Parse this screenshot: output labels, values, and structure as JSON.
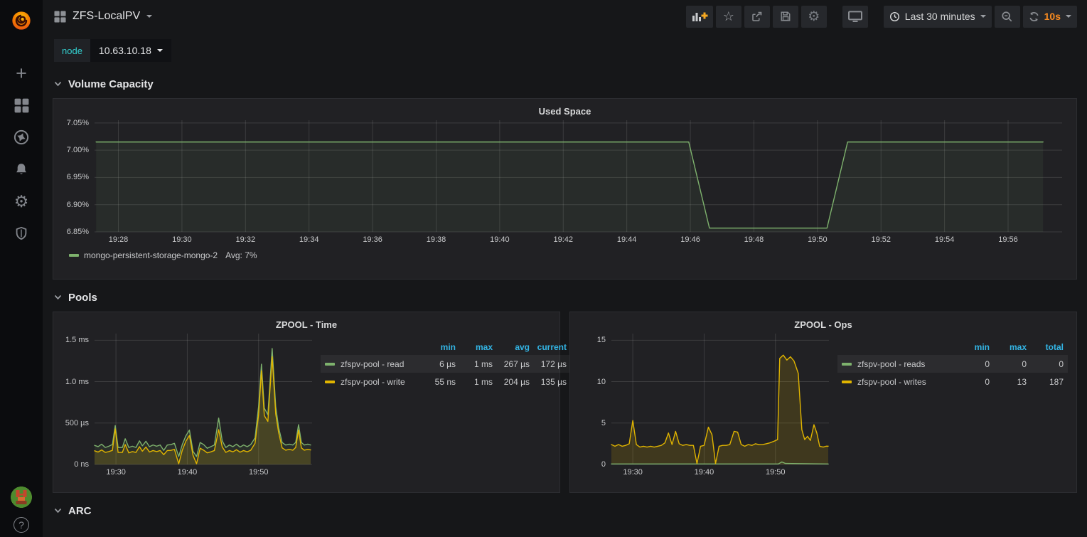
{
  "navbar": {
    "title": "ZFS-LocalPV",
    "time_range": "Last 30 minutes",
    "refresh_interval": "10s"
  },
  "sidebar": {
    "items": [
      {
        "name": "create",
        "icon": "plus-icon"
      },
      {
        "name": "dashboards",
        "icon": "apps-icon"
      },
      {
        "name": "explore",
        "icon": "compass-icon"
      },
      {
        "name": "alerting",
        "icon": "bell-icon"
      },
      {
        "name": "configuration",
        "icon": "gear-icon"
      },
      {
        "name": "server-admin",
        "icon": "shield-icon"
      }
    ],
    "bottom": [
      {
        "name": "user-profile",
        "icon": "user-avatar"
      },
      {
        "name": "help",
        "icon": "question-icon"
      }
    ]
  },
  "icons": {
    "plus": "+",
    "star": "☆",
    "gear": "⚙",
    "question": "?"
  },
  "variables": {
    "label": "node",
    "value": "10.63.10.18"
  },
  "sections": {
    "volume_capacity": "Volume Capacity",
    "pools": "Pools",
    "arc": "ARC"
  },
  "colors": {
    "green": "#7eb26d",
    "yellow": "#e0b400",
    "legend_header_blue": "#33b5e5",
    "refresh_orange": "#f98b20",
    "variable_cyan": "#33cfcf",
    "panel_bg": "#212124",
    "page_bg": "#161719"
  },
  "chart_data": [
    {
      "id": "used_space",
      "type": "line",
      "title": "Used Space",
      "x_domain": [
        27.25,
        57.7
      ],
      "y_domain": [
        6.85,
        7.055
      ],
      "x_ticks": [
        {
          "v": 28,
          "label": "19:28"
        },
        {
          "v": 30,
          "label": "19:30"
        },
        {
          "v": 32,
          "label": "19:32"
        },
        {
          "v": 34,
          "label": "19:34"
        },
        {
          "v": 36,
          "label": "19:36"
        },
        {
          "v": 38,
          "label": "19:38"
        },
        {
          "v": 40,
          "label": "19:40"
        },
        {
          "v": 42,
          "label": "19:42"
        },
        {
          "v": 44,
          "label": "19:44"
        },
        {
          "v": 46,
          "label": "19:46"
        },
        {
          "v": 48,
          "label": "19:48"
        },
        {
          "v": 50,
          "label": "19:50"
        },
        {
          "v": 52,
          "label": "19:52"
        },
        {
          "v": 54,
          "label": "19:54"
        },
        {
          "v": 56,
          "label": "19:56"
        }
      ],
      "y_ticks": [
        {
          "v": 6.85,
          "label": "6.85%"
        },
        {
          "v": 6.9,
          "label": "6.90%"
        },
        {
          "v": 6.95,
          "label": "6.95%"
        },
        {
          "v": 7.0,
          "label": "7.00%"
        },
        {
          "v": 7.05,
          "label": "7.05%"
        }
      ],
      "series": [
        {
          "name": "mongo-persistent-storage-mongo-2",
          "color": "#7eb26d",
          "fill_opacity": 0.08,
          "points": [
            [
              27.3,
              7.015
            ],
            [
              45.95,
              7.015
            ],
            [
              46.6,
              6.857
            ],
            [
              50.3,
              6.857
            ],
            [
              50.95,
              7.015
            ],
            [
              57.1,
              7.015
            ]
          ]
        }
      ],
      "legend": {
        "type": "list",
        "items": [
          {
            "name": "mongo-persistent-storage-mongo-2",
            "color": "#7eb26d",
            "value": "Avg: 7%"
          }
        ]
      }
    },
    {
      "id": "zpool_time",
      "type": "line",
      "title": "ZPOOL - Time",
      "x_domain": [
        27.0,
        57.5
      ],
      "y_domain": [
        0,
        1580
      ],
      "x_ticks": [
        {
          "v": 30,
          "label": "19:30"
        },
        {
          "v": 40,
          "label": "19:40"
        },
        {
          "v": 50,
          "label": "19:50"
        }
      ],
      "y_ticks": [
        {
          "v": 0,
          "label": "0 ns"
        },
        {
          "v": 500,
          "label": "500 µs"
        },
        {
          "v": 1000,
          "label": "1.0 ms"
        },
        {
          "v": 1500,
          "label": "1.5 ms"
        }
      ],
      "series": [
        {
          "name": "zfspv-pool - read",
          "color": "#7eb26d",
          "fill_opacity": 0.1,
          "points": [
            [
              27,
              230
            ],
            [
              27.5,
              215
            ],
            [
              28,
              245
            ],
            [
              28.5,
              205
            ],
            [
              29,
              220
            ],
            [
              29.5,
              240
            ],
            [
              29.9,
              470
            ],
            [
              30.3,
              205
            ],
            [
              30.9,
              205
            ],
            [
              31.3,
              310
            ],
            [
              31.8,
              205
            ],
            [
              32.3,
              220
            ],
            [
              32.8,
              205
            ],
            [
              33.3,
              285
            ],
            [
              33.7,
              225
            ],
            [
              34.2,
              280
            ],
            [
              34.7,
              215
            ],
            [
              35.2,
              235
            ],
            [
              35.7,
              220
            ],
            [
              36.2,
              235
            ],
            [
              36.7,
              170
            ],
            [
              37.2,
              235
            ],
            [
              37.7,
              240
            ],
            [
              38.2,
              255
            ],
            [
              38.8,
              95
            ],
            [
              39.3,
              240
            ],
            [
              39.8,
              345
            ],
            [
              40.3,
              415
            ],
            [
              40.8,
              160
            ],
            [
              41.3,
              95
            ],
            [
              41.8,
              265
            ],
            [
              42.3,
              240
            ],
            [
              42.8,
              195
            ],
            [
              43.3,
              215
            ],
            [
              43.8,
              235
            ],
            [
              44.4,
              560
            ],
            [
              44.9,
              285
            ],
            [
              45.4,
              205
            ],
            [
              45.9,
              235
            ],
            [
              46.4,
              215
            ],
            [
              46.9,
              245
            ],
            [
              47.4,
              210
            ],
            [
              47.9,
              235
            ],
            [
              48.4,
              215
            ],
            [
              48.9,
              240
            ],
            [
              49.5,
              320
            ],
            [
              50,
              700
            ],
            [
              50.4,
              1210
            ],
            [
              50.8,
              680
            ],
            [
              51.3,
              600
            ],
            [
              51.9,
              1400
            ],
            [
              52.4,
              700
            ],
            [
              52.8,
              450
            ],
            [
              53.3,
              265
            ],
            [
              53.8,
              235
            ],
            [
              54.3,
              245
            ],
            [
              54.8,
              235
            ],
            [
              55.2,
              265
            ],
            [
              55.6,
              480
            ],
            [
              56,
              265
            ],
            [
              56.4,
              235
            ],
            [
              56.9,
              245
            ],
            [
              57.3,
              235
            ]
          ]
        },
        {
          "name": "zfspv-pool - write",
          "color": "#e0b400",
          "fill_opacity": 0.16,
          "points": [
            [
              27,
              165
            ],
            [
              27.5,
              150
            ],
            [
              28,
              175
            ],
            [
              28.5,
              145
            ],
            [
              29,
              155
            ],
            [
              29.5,
              170
            ],
            [
              29.9,
              430
            ],
            [
              30.3,
              145
            ],
            [
              30.9,
              145
            ],
            [
              31.3,
              240
            ],
            [
              31.8,
              140
            ],
            [
              32.3,
              155
            ],
            [
              32.8,
              145
            ],
            [
              33.3,
              215
            ],
            [
              33.7,
              160
            ],
            [
              34.2,
              210
            ],
            [
              34.7,
              150
            ],
            [
              35.2,
              168
            ],
            [
              35.7,
              155
            ],
            [
              36.2,
              168
            ],
            [
              36.7,
              118
            ],
            [
              37.2,
              168
            ],
            [
              37.7,
              170
            ],
            [
              38.2,
              182
            ],
            [
              38.8,
              8
            ],
            [
              39.3,
              172
            ],
            [
              39.8,
              280
            ],
            [
              40.3,
              350
            ],
            [
              40.8,
              112
            ],
            [
              41.3,
              8
            ],
            [
              41.8,
              196
            ],
            [
              42.3,
              172
            ],
            [
              42.8,
              140
            ],
            [
              43.3,
              152
            ],
            [
              43.8,
              168
            ],
            [
              44.4,
              420
            ],
            [
              44.9,
              212
            ],
            [
              45.4,
              146
            ],
            [
              45.9,
              168
            ],
            [
              46.4,
              152
            ],
            [
              46.9,
              178
            ],
            [
              47.4,
              148
            ],
            [
              47.9,
              168
            ],
            [
              48.4,
              152
            ],
            [
              48.9,
              172
            ],
            [
              49.5,
              255
            ],
            [
              50,
              600
            ],
            [
              50.4,
              1130
            ],
            [
              50.8,
              590
            ],
            [
              51.3,
              520
            ],
            [
              51.9,
              1300
            ],
            [
              52.4,
              610
            ],
            [
              52.8,
              390
            ],
            [
              53.3,
              200
            ],
            [
              53.8,
              172
            ],
            [
              54.3,
              182
            ],
            [
              54.8,
              172
            ],
            [
              55.2,
              205
            ],
            [
              55.6,
              415
            ],
            [
              56,
              200
            ],
            [
              56.4,
              172
            ],
            [
              56.9,
              182
            ],
            [
              57.3,
              175
            ]
          ]
        }
      ],
      "legend": {
        "type": "table",
        "min_width": 352,
        "headers": [
          "min",
          "max",
          "avg",
          "current"
        ],
        "rows": [
          {
            "name": "zfspv-pool - read",
            "color": "#7eb26d",
            "values": [
              "6 µs",
              "1 ms",
              "267 µs",
              "172 µs"
            ]
          },
          {
            "name": "zfspv-pool - write",
            "color": "#e0b400",
            "values": [
              "55 ns",
              "1 ms",
              "204 µs",
              "135 µs"
            ]
          }
        ]
      }
    },
    {
      "id": "zpool_ops",
      "type": "line",
      "title": "ZPOOL - Ops",
      "x_domain": [
        27.0,
        57.5
      ],
      "y_domain": [
        0,
        15.8
      ],
      "x_ticks": [
        {
          "v": 30,
          "label": "19:30"
        },
        {
          "v": 40,
          "label": "19:40"
        },
        {
          "v": 50,
          "label": "19:50"
        }
      ],
      "y_ticks": [
        {
          "v": 0,
          "label": "0"
        },
        {
          "v": 5,
          "label": "5"
        },
        {
          "v": 10,
          "label": "10"
        },
        {
          "v": 15,
          "label": "15"
        }
      ],
      "series": [
        {
          "name": "zfspv-pool - reads",
          "color": "#7eb26d",
          "fill_opacity": 0.05,
          "points": [
            [
              27,
              0.06
            ],
            [
              50.4,
              0.06
            ],
            [
              50.9,
              0.3
            ],
            [
              51.4,
              0.12
            ],
            [
              57.4,
              0.06
            ]
          ]
        },
        {
          "name": "zfspv-pool - writes",
          "color": "#e0b400",
          "fill_opacity": 0.16,
          "points": [
            [
              27,
              2.4
            ],
            [
              27.5,
              2.2
            ],
            [
              28,
              2.4
            ],
            [
              28.5,
              2.2
            ],
            [
              29,
              2.3
            ],
            [
              29.5,
              2.5
            ],
            [
              30,
              5.3
            ],
            [
              30.5,
              2.4
            ],
            [
              31,
              2.1
            ],
            [
              31.5,
              2.2
            ],
            [
              32,
              2.1
            ],
            [
              32.5,
              2.2
            ],
            [
              33,
              2.1
            ],
            [
              33.5,
              2.2
            ],
            [
              34,
              2.3
            ],
            [
              34.5,
              2.6
            ],
            [
              35,
              3.8
            ],
            [
              35.5,
              2.4
            ],
            [
              36,
              4
            ],
            [
              36.5,
              2.5
            ],
            [
              37,
              2.3
            ],
            [
              37.5,
              2.4
            ],
            [
              38,
              2.3
            ],
            [
              38.5,
              2.3
            ],
            [
              39,
              0.1
            ],
            [
              39.5,
              2.2
            ],
            [
              40,
              2.3
            ],
            [
              40.6,
              4.5
            ],
            [
              41.1,
              3.6
            ],
            [
              41.6,
              0.1
            ],
            [
              42.1,
              2.2
            ],
            [
              42.6,
              2.3
            ],
            [
              43.1,
              2.3
            ],
            [
              43.6,
              2.4
            ],
            [
              44.2,
              4
            ],
            [
              44.7,
              3.9
            ],
            [
              45.2,
              2.4
            ],
            [
              45.7,
              2.2
            ],
            [
              46.2,
              2.4
            ],
            [
              46.7,
              2.3
            ],
            [
              47.2,
              2.5
            ],
            [
              47.7,
              2.4
            ],
            [
              48.2,
              2.4
            ],
            [
              48.7,
              2.5
            ],
            [
              49.2,
              2.6
            ],
            [
              49.8,
              2.8
            ],
            [
              50.3,
              3
            ],
            [
              50.6,
              12.8
            ],
            [
              51.1,
              13.2
            ],
            [
              51.6,
              12.6
            ],
            [
              52.1,
              13
            ],
            [
              52.6,
              12.5
            ],
            [
              53.2,
              11
            ],
            [
              53.7,
              4.2
            ],
            [
              54.1,
              3
            ],
            [
              54.5,
              3.4
            ],
            [
              54.9,
              2.9
            ],
            [
              55.4,
              4.8
            ],
            [
              55.8,
              3.8
            ],
            [
              56.2,
              2.2
            ],
            [
              56.7,
              2.1
            ],
            [
              57.1,
              2.2
            ],
            [
              57.4,
              2.2
            ]
          ]
        }
      ],
      "legend": {
        "type": "table",
        "headers": [
          "min",
          "max",
          "total"
        ],
        "rows": [
          {
            "name": "zfspv-pool - reads",
            "color": "#7eb26d",
            "values": [
              "0",
              "0",
              "0"
            ]
          },
          {
            "name": "zfspv-pool - writes",
            "color": "#e0b400",
            "values": [
              "0",
              "13",
              "187"
            ]
          }
        ]
      }
    }
  ]
}
